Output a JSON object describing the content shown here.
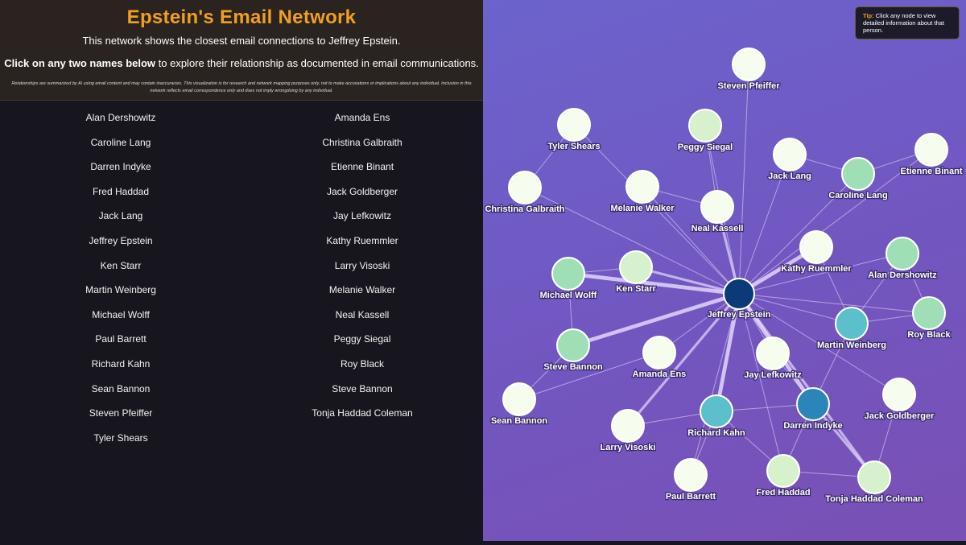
{
  "header": {
    "title": "Epstein's Email Network",
    "subtitle": "This network shows the closest email connections to Jeffrey Epstein.",
    "instruction_bold": "Click on any two names below",
    "instruction_rest": " to explore their relationship as documented in email communications.",
    "disclaimer": "Relationships are summarized by AI using email content and may contain inaccuracies. This visualization is for research and network mapping purposes only, not to make accusations or implications about any individual. Inclusion in this network reflects email correspondence only and does not imply wrongdoing by any individual."
  },
  "names": [
    "Alan Dershowitz",
    "Amanda Ens",
    "Caroline Lang",
    "Christina Galbraith",
    "Darren Indyke",
    "Etienne Binant",
    "Fred Haddad",
    "Jack Goldberger",
    "Jack Lang",
    "Jay Lefkowitz",
    "Jeffrey Epstein",
    "Kathy Ruemmler",
    "Ken Starr",
    "Larry Visoski",
    "Martin Weinberg",
    "Melanie Walker",
    "Michael Wolff",
    "Neal Kassell",
    "Paul Barrett",
    "Peggy Siegal",
    "Richard Kahn",
    "Roy Black",
    "Sean Bannon",
    "Steve Bannon",
    "Steven Pfeiffer",
    "Tonja Haddad Coleman",
    "Tyler Shears"
  ],
  "tip": {
    "label": "Tip:",
    "text": " Click any node to view detailed information about that person."
  },
  "colors": {
    "center": "#0b3a78",
    "high": "#2a86b8",
    "mid": "#5cbfcc",
    "green": "#a0dfb6",
    "light": "#d6f1cb",
    "pale": "#f6fdee"
  },
  "graph": {
    "nodes": [
      {
        "name": "Jeffrey Epstein",
        "tier": "center"
      },
      {
        "name": "Steven Pfeiffer",
        "tier": "pale"
      },
      {
        "name": "Tyler Shears",
        "tier": "pale"
      },
      {
        "name": "Peggy Siegal",
        "tier": "light"
      },
      {
        "name": "Jack Lang",
        "tier": "pale"
      },
      {
        "name": "Etienne Binant",
        "tier": "pale"
      },
      {
        "name": "Caroline Lang",
        "tier": "green"
      },
      {
        "name": "Christina Galbraith",
        "tier": "pale"
      },
      {
        "name": "Melanie Walker",
        "tier": "pale"
      },
      {
        "name": "Neal Kassell",
        "tier": "pale"
      },
      {
        "name": "Kathy Ruemmler",
        "tier": "pale"
      },
      {
        "name": "Alan Dershowitz",
        "tier": "green"
      },
      {
        "name": "Michael Wolff",
        "tier": "green"
      },
      {
        "name": "Ken Starr",
        "tier": "light"
      },
      {
        "name": "Roy Black",
        "tier": "green"
      },
      {
        "name": "Martin Weinberg",
        "tier": "mid"
      },
      {
        "name": "Steve Bannon",
        "tier": "green"
      },
      {
        "name": "Amanda Ens",
        "tier": "pale"
      },
      {
        "name": "Jay Lefkowitz",
        "tier": "pale"
      },
      {
        "name": "Darren Indyke",
        "tier": "high"
      },
      {
        "name": "Jack Goldberger",
        "tier": "pale"
      },
      {
        "name": "Sean Bannon",
        "tier": "pale"
      },
      {
        "name": "Richard Kahn",
        "tier": "mid"
      },
      {
        "name": "Larry Visoski",
        "tier": "pale"
      },
      {
        "name": "Paul Barrett",
        "tier": "pale"
      },
      {
        "name": "Fred Haddad",
        "tier": "light"
      },
      {
        "name": "Tonja Haddad Coleman",
        "tier": "light"
      }
    ],
    "edges": [
      [
        "Jeffrey Epstein",
        "Steven Pfeiffer",
        1
      ],
      [
        "Jeffrey Epstein",
        "Tyler Shears",
        1
      ],
      [
        "Jeffrey Epstein",
        "Peggy Siegal",
        1
      ],
      [
        "Jeffrey Epstein",
        "Jack Lang",
        1
      ],
      [
        "Jeffrey Epstein",
        "Etienne Binant",
        1
      ],
      [
        "Jeffrey Epstein",
        "Caroline Lang",
        1
      ],
      [
        "Jeffrey Epstein",
        "Christina Galbraith",
        1
      ],
      [
        "Jeffrey Epstein",
        "Melanie Walker",
        1
      ],
      [
        "Jeffrey Epstein",
        "Neal Kassell",
        2
      ],
      [
        "Jeffrey Epstein",
        "Kathy Ruemmler",
        3
      ],
      [
        "Jeffrey Epstein",
        "Alan Dershowitz",
        1
      ],
      [
        "Jeffrey Epstein",
        "Michael Wolff",
        3
      ],
      [
        "Jeffrey Epstein",
        "Ken Starr",
        2
      ],
      [
        "Jeffrey Epstein",
        "Roy Black",
        1
      ],
      [
        "Jeffrey Epstein",
        "Martin Weinberg",
        1
      ],
      [
        "Jeffrey Epstein",
        "Steve Bannon",
        3
      ],
      [
        "Jeffrey Epstein",
        "Amanda Ens",
        1
      ],
      [
        "Jeffrey Epstein",
        "Jay Lefkowitz",
        1
      ],
      [
        "Jeffrey Epstein",
        "Darren Indyke",
        3
      ],
      [
        "Jeffrey Epstein",
        "Jack Goldberger",
        1
      ],
      [
        "Jeffrey Epstein",
        "Richard Kahn",
        3
      ],
      [
        "Jeffrey Epstein",
        "Larry Visoski",
        2
      ],
      [
        "Jeffrey Epstein",
        "Paul Barrett",
        1
      ],
      [
        "Jeffrey Epstein",
        "Fred Haddad",
        1
      ],
      [
        "Jeffrey Epstein",
        "Tonja Haddad Coleman",
        2
      ],
      [
        "Tyler Shears",
        "Christina Galbraith",
        1
      ],
      [
        "Melanie Walker",
        "Neal Kassell",
        1
      ],
      [
        "Peggy Siegal",
        "Neal Kassell",
        1
      ],
      [
        "Caroline Lang",
        "Etienne Binant",
        1
      ],
      [
        "Caroline Lang",
        "Jack Lang",
        1
      ],
      [
        "Kathy Ruemmler",
        "Martin Weinberg",
        1
      ],
      [
        "Alan Dershowitz",
        "Roy Black",
        1
      ],
      [
        "Alan Dershowitz",
        "Martin Weinberg",
        1
      ],
      [
        "Roy Black",
        "Martin Weinberg",
        1
      ],
      [
        "Michael Wolff",
        "Ken Starr",
        1
      ],
      [
        "Michael Wolff",
        "Steve Bannon",
        1
      ],
      [
        "Steve Bannon",
        "Sean Bannon",
        1
      ],
      [
        "Sean Bannon",
        "Amanda Ens",
        1
      ],
      [
        "Martin Weinberg",
        "Darren Indyke",
        1
      ],
      [
        "Jay Lefkowitz",
        "Darren Indyke",
        1
      ],
      [
        "Darren Indyke",
        "Richard Kahn",
        1
      ],
      [
        "Darren Indyke",
        "Fred Haddad",
        1
      ],
      [
        "Darren Indyke",
        "Tonja Haddad Coleman",
        2
      ],
      [
        "Richard Kahn",
        "Paul Barrett",
        1
      ],
      [
        "Richard Kahn",
        "Larry Visoski",
        1
      ],
      [
        "Fred Haddad",
        "Tonja Haddad Coleman",
        1
      ],
      [
        "Jack Goldberger",
        "Tonja Haddad Coleman",
        1
      ],
      [
        "Richard Kahn",
        "Fred Haddad",
        1
      ]
    ]
  }
}
